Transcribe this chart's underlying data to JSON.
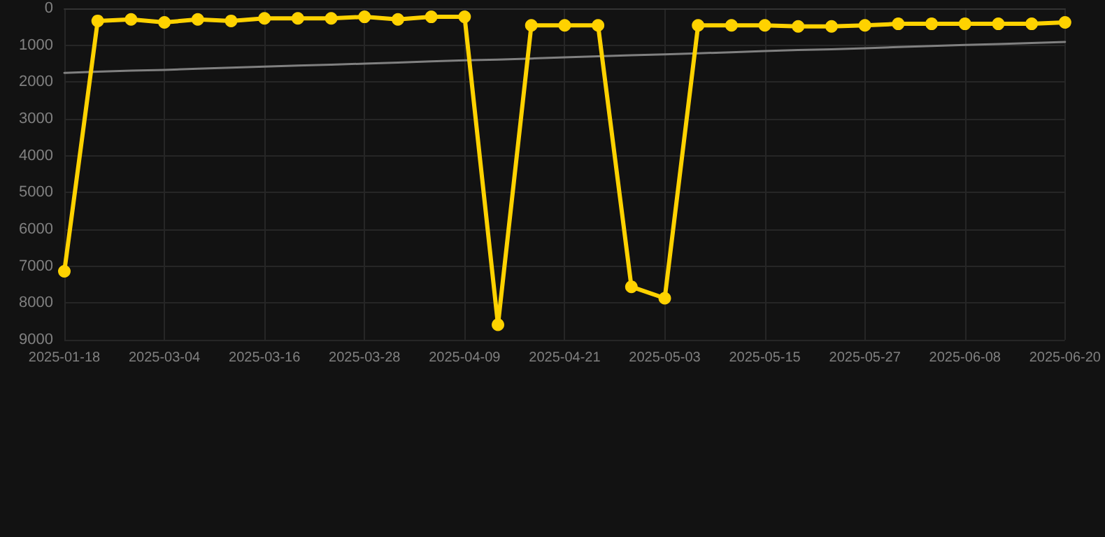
{
  "chart_data": {
    "type": "line",
    "categories": [
      "2025-01-18",
      null,
      null,
      "2025-03-04",
      null,
      null,
      "2025-03-16",
      null,
      null,
      "2025-03-28",
      null,
      null,
      "2025-04-09",
      null,
      null,
      "2025-04-21",
      null,
      null,
      "2025-05-03",
      null,
      null,
      "2025-05-15",
      null,
      null,
      "2025-05-27",
      null,
      null,
      "2025-06-08",
      null,
      null,
      "2025-06-20"
    ],
    "series": [
      {
        "color": "#ffd200",
        "marker": "circle",
        "values": [
          7140,
          340,
          300,
          380,
          300,
          340,
          270,
          270,
          270,
          230,
          300,
          230,
          230,
          8590,
          460,
          460,
          460,
          7560,
          7870,
          460,
          460,
          460,
          490,
          490,
          460,
          420,
          420,
          420,
          420,
          420,
          380
        ]
      },
      {
        "type": "line",
        "color": "#808080",
        "marker": "none",
        "values": [
          1750,
          1720,
          1690,
          1670,
          1640,
          1610,
          1580,
          1550,
          1530,
          1500,
          1470,
          1440,
          1410,
          1390,
          1360,
          1330,
          1300,
          1270,
          1250,
          1220,
          1190,
          1160,
          1130,
          1110,
          1080,
          1050,
          1020,
          990,
          970,
          940,
          910
        ]
      }
    ],
    "ylim": [
      9000,
      0
    ],
    "yticks": [
      0,
      1000,
      2000,
      3000,
      4000,
      5000,
      6000,
      7000,
      8000,
      9000
    ],
    "grid": true
  }
}
